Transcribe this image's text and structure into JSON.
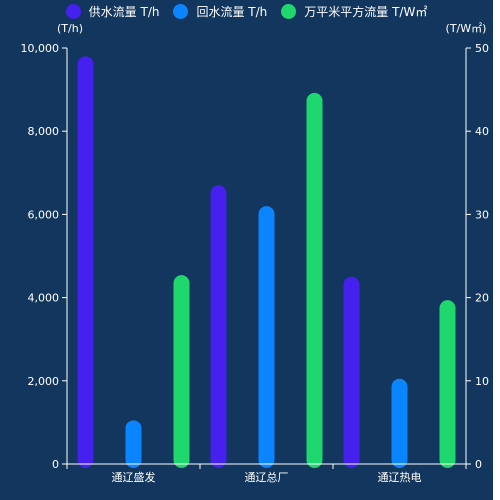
{
  "chart_data": {
    "type": "bar",
    "categories": [
      "通辽盛发",
      "通辽总厂",
      "通辽热电"
    ],
    "series": [
      {
        "name": "供水流量 T/h",
        "axis": "left",
        "color": "#4520ee",
        "values": [
          9800,
          6700,
          4500
        ]
      },
      {
        "name": "回水流量 T/h",
        "axis": "left",
        "color": "#0b84ff",
        "values": [
          1050,
          6200,
          2050
        ]
      },
      {
        "name": "万平米平方流量 T/W㎡",
        "axis": "right",
        "color": "#1fd86d",
        "values": [
          22.7,
          44.6,
          19.7
        ]
      }
    ],
    "y_left": {
      "label": "(T/h)",
      "ylim": [
        0,
        10000
      ],
      "ticks": [
        0,
        2000,
        4000,
        6000,
        8000,
        10000
      ],
      "tick_labels": [
        "0",
        "2,000",
        "4,000",
        "6,000",
        "8,000",
        "10,000"
      ]
    },
    "y_right": {
      "label": "(T/W㎡)",
      "ylim": [
        0,
        50
      ],
      "ticks": [
        0,
        10,
        20,
        30,
        40,
        50
      ],
      "tick_labels": [
        "0",
        "10",
        "20",
        "30",
        "40",
        "50"
      ]
    },
    "grid": false,
    "legend_position": "top-center",
    "background_color": "#12365d",
    "text_color": "#ffffff"
  }
}
